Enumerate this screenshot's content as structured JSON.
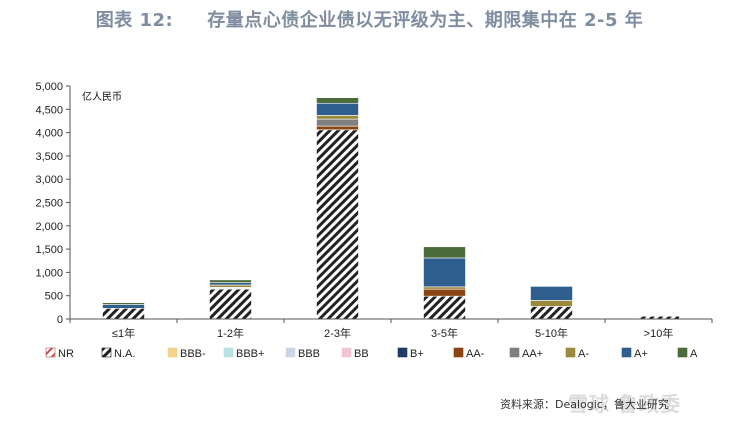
{
  "title": {
    "label": "图表 12:",
    "text": "存量点心债企业债以无评级为主、期限集中在 2-5 年"
  },
  "source": "资料来源：Dealogic，鲁大业研究",
  "watermark": "雪球 鲁政委",
  "chart_data": {
    "type": "bar",
    "stacked": true,
    "unit_label": "亿人民币",
    "categories": [
      "≤1年",
      "1-2年",
      "2-3年",
      "3-5年",
      "5-10年",
      ">10年"
    ],
    "ylim": [
      0,
      5000
    ],
    "yticks": [
      "0",
      "500",
      "1,000",
      "1,500",
      "2,000",
      "2,500",
      "3,000",
      "3,500",
      "4,000",
      "4,500",
      "5,000"
    ],
    "ytick_values": [
      0,
      500,
      1000,
      1500,
      2000,
      2500,
      3000,
      3500,
      4000,
      4500,
      5000
    ],
    "legend_position": "bottom",
    "series": [
      {
        "name": "NR",
        "color": "#c0504d",
        "pattern": "hatch-red",
        "values": [
          0,
          0,
          0,
          0,
          0,
          0
        ]
      },
      {
        "name": "N.A.",
        "color": "#222222",
        "pattern": "hatch-black",
        "values": [
          230,
          640,
          4060,
          490,
          270,
          60
        ]
      },
      {
        "name": "BBB-",
        "color": "#f3d28a",
        "values": [
          0,
          0,
          0,
          0,
          0,
          0
        ]
      },
      {
        "name": "BBB+",
        "color": "#b9e3e3",
        "values": [
          0,
          20,
          0,
          0,
          0,
          0
        ]
      },
      {
        "name": "BBB",
        "color": "#cbd7e8",
        "values": [
          0,
          20,
          0,
          0,
          0,
          0
        ]
      },
      {
        "name": "BB",
        "color": "#f1c6d3",
        "values": [
          0,
          0,
          0,
          0,
          0,
          0
        ]
      },
      {
        "name": "B+",
        "color": "#1f3a68",
        "values": [
          0,
          0,
          0,
          0,
          0,
          0
        ]
      },
      {
        "name": "AA-",
        "color": "#8b4513",
        "values": [
          0,
          0,
          80,
          150,
          0,
          0
        ]
      },
      {
        "name": "AA+",
        "color": "#7f7f7f",
        "values": [
          0,
          0,
          150,
          0,
          0,
          0
        ]
      },
      {
        "name": "A-",
        "color": "#9c8a3c",
        "values": [
          0,
          50,
          80,
          50,
          130,
          0
        ]
      },
      {
        "name": "A+",
        "color": "#2e5e8e",
        "values": [
          80,
          50,
          260,
          620,
          300,
          10
        ]
      },
      {
        "name": "A",
        "color": "#4a6b3a",
        "values": [
          40,
          60,
          120,
          240,
          0,
          0
        ]
      }
    ]
  }
}
